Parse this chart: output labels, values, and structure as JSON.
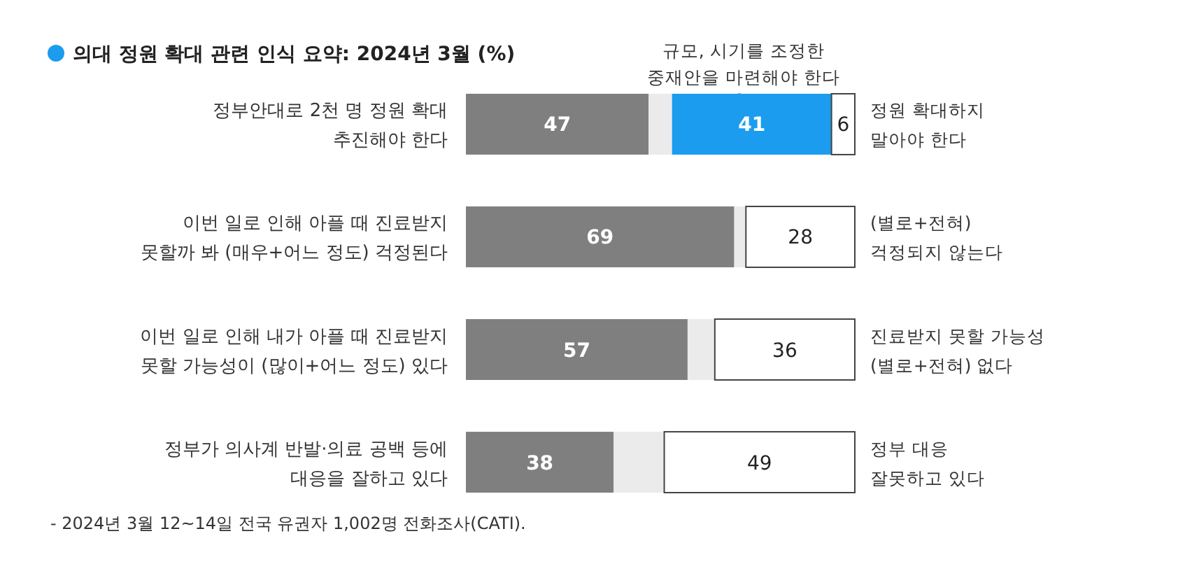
{
  "chart_data": {
    "type": "bar",
    "orientation": "horizontal",
    "stacked": true,
    "title": "의대 정원 확대 관련 인식 요약: 2024년 3월 (%)",
    "categories": [
      "정부안대로 2천 명 정원 확대\n추진해야 한다",
      "이번 일로 인해 아플 때 진료받지\n못할까 봐 (매우+어느 정도) 걱정된다",
      "이번 일로 인해 내가 아플 때 진료받지\n못할 가능성이 (많이+어느 정도) 있다",
      "정부가 의사계 반발·의료 공백 등에\n대응을 잘하고 있다"
    ],
    "xlim": [
      0,
      100
    ],
    "series": [
      {
        "color": "#7f7f7f",
        "values": [
          47,
          69,
          57,
          38
        ],
        "value_labels": [
          "47",
          "69",
          "57",
          "38"
        ]
      },
      {
        "color": "#ebebeb",
        "values": [
          6,
          3,
          7,
          13
        ]
      },
      {
        "color": "#1b9cef",
        "values": [
          41,
          null,
          null,
          null
        ],
        "value_labels": [
          "41",
          null,
          null,
          null
        ]
      },
      {
        "color": "#ffffff",
        "values": [
          6,
          28,
          36,
          49
        ],
        "value_labels": [
          "6",
          "28",
          "36",
          "49"
        ]
      }
    ],
    "annotations": [
      "정원 확대하지\n말아야 한다",
      "(별로+전혀)\n걱정되지 않는다",
      "진료받지 못할 가능성\n(별로+전혀) 없다",
      "정부 대응\n잘못하고 있다",
      "규모, 시기를 조정한\n중재안을 마련해야 한다",
      "- 2024년 3월 12~14일 전국 유권자 1,002명 전화조사(CATI)."
    ]
  }
}
